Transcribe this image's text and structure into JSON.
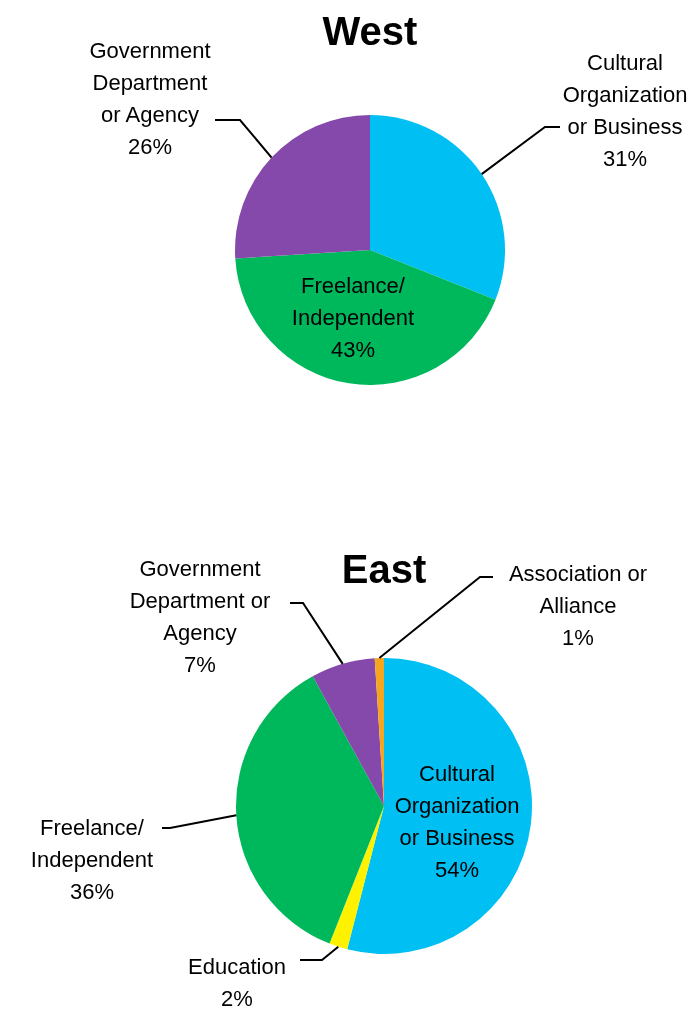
{
  "chart_data": [
    {
      "type": "pie",
      "title": "West",
      "categories": [
        "Cultural Organization or Business",
        "Freelance/Independent",
        "Government Department or Agency"
      ],
      "values": [
        31,
        43,
        26
      ],
      "value_labels": [
        "31%",
        "43%",
        "26%"
      ],
      "colors": [
        "#00bff3",
        "#00b85c",
        "#8549ab"
      ]
    },
    {
      "type": "pie",
      "title": "East",
      "categories": [
        "Cultural Organization or Business",
        "Education",
        "Freelance/Independent",
        "Government Department or Agency",
        "Association or Alliance"
      ],
      "values": [
        54,
        2,
        36,
        7,
        1
      ],
      "value_labels": [
        "54%",
        "2%",
        "36%",
        "7%",
        "1%"
      ],
      "colors": [
        "#00bff3",
        "#fff200",
        "#00b85c",
        "#8549ab",
        "#f7a51c"
      ]
    }
  ]
}
